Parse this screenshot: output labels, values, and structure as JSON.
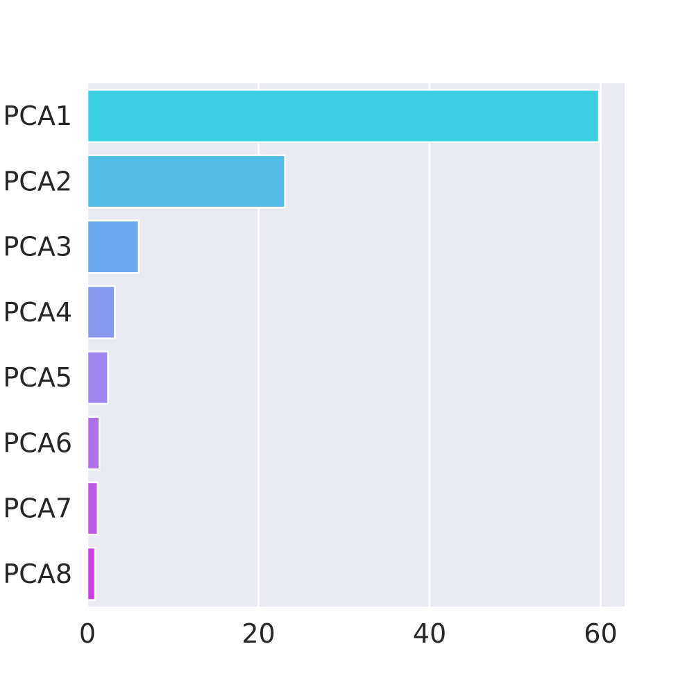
{
  "chart_data": {
    "type": "bar",
    "orientation": "horizontal",
    "categories": [
      "PCA1",
      "PCA2",
      "PCA3",
      "PCA4",
      "PCA5",
      "PCA6",
      "PCA7",
      "PCA8"
    ],
    "values": [
      59.8,
      23.1,
      6.0,
      3.2,
      2.4,
      1.4,
      1.2,
      0.9
    ],
    "colors": [
      "#3bcfe3",
      "#52bce6",
      "#68a8ec",
      "#8699ed",
      "#9d87ed",
      "#ae6fe9",
      "#bd57e8",
      "#cf3ee6"
    ],
    "xticks": [
      0,
      20,
      40,
      60
    ],
    "xlim": [
      0,
      62.8
    ],
    "xlabel": "",
    "ylabel": "",
    "title": "",
    "grid": true,
    "background": "#eaeaf2"
  }
}
